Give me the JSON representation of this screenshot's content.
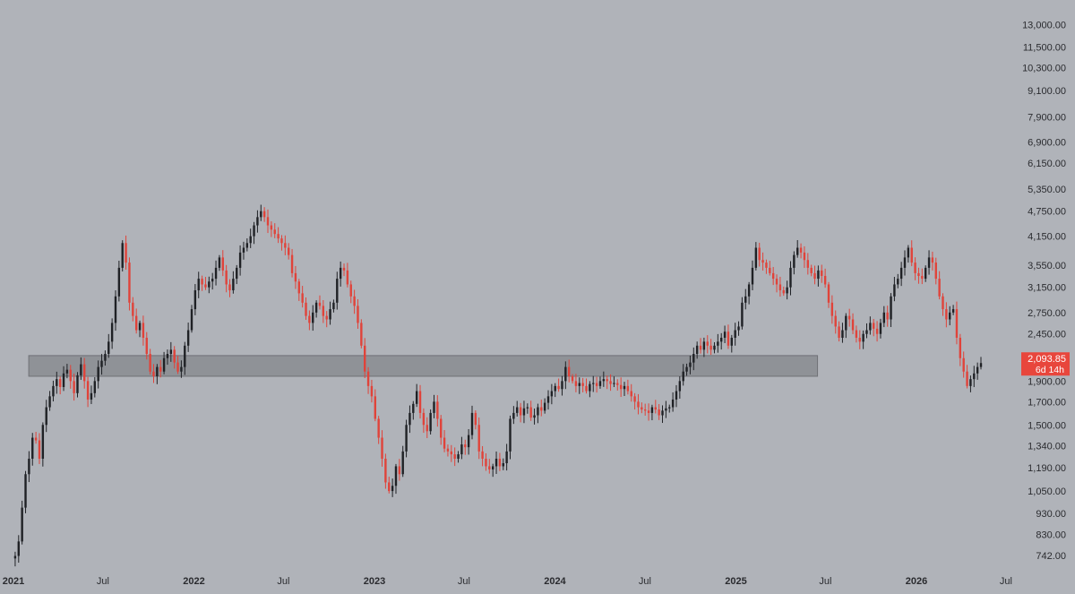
{
  "colors": {
    "background": "#b0b3b9",
    "up_candle": "#1f2125",
    "down_candle": "#e0433a",
    "zone_fill": "#8a8c91",
    "zone_edge": "#6f7176",
    "axis_text": "#2a2b2f",
    "price_tag_bg": "#e8463c",
    "price_tag_text": "#ffffff"
  },
  "chart_data": {
    "type": "candlestick",
    "y_scale": "log",
    "ylim": [
      700,
      14000
    ],
    "y_ticks": [
      13000,
      11500,
      10300,
      9100,
      7900,
      6900,
      6150,
      5350,
      4750,
      4150,
      3550,
      3150,
      2750,
      2450,
      2150,
      1900,
      1700,
      1500,
      1340,
      1190,
      1050,
      930,
      830,
      742
    ],
    "y_tick_labels": [
      "13,000.00",
      "11,500.00",
      "10,300.00",
      "9,100.00",
      "7,900.00",
      "6,900.00",
      "6,150.00",
      "5,350.00",
      "4,750.00",
      "4,150.00",
      "3,550.00",
      "3,150.00",
      "2,750.00",
      "2,450.00",
      "2,150.00",
      "1,900.00",
      "1,700.00",
      "1,500.00",
      "1,340.00",
      "1,190.00",
      "1,050.00",
      "930.00",
      "830.00",
      "742.00"
    ],
    "x_start": "2021-01-01",
    "x_end": "2026-08-01",
    "x_ticks": [
      {
        "date": "2021-01-01",
        "label": "2021",
        "bold": true
      },
      {
        "date": "2021-07-01",
        "label": "Jul",
        "bold": false
      },
      {
        "date": "2022-01-01",
        "label": "2022",
        "bold": true
      },
      {
        "date": "2022-07-01",
        "label": "Jul",
        "bold": false
      },
      {
        "date": "2023-01-01",
        "label": "2023",
        "bold": true
      },
      {
        "date": "2023-07-01",
        "label": "Jul",
        "bold": false
      },
      {
        "date": "2024-01-01",
        "label": "2024",
        "bold": true
      },
      {
        "date": "2024-07-01",
        "label": "Jul",
        "bold": false
      },
      {
        "date": "2025-01-01",
        "label": "2025",
        "bold": true
      },
      {
        "date": "2025-07-01",
        "label": "Jul",
        "bold": false
      },
      {
        "date": "2026-01-01",
        "label": "2026",
        "bold": true
      },
      {
        "date": "2026-07-01",
        "label": "Jul",
        "bold": false
      }
    ],
    "zone": {
      "low": 1950,
      "high": 2180,
      "start": "2021-02-01",
      "end": "2025-06-15"
    },
    "last_price": "2,093.85",
    "countdown": "6d 14h",
    "last_price_value": 2093.85,
    "path_start": "2021-01-01",
    "path_step_days": 7,
    "path_start_price": 730,
    "close_path": [
      740,
      800,
      960,
      1150,
      1250,
      1400,
      1380,
      1250,
      1500,
      1650,
      1750,
      1850,
      1920,
      1840,
      1980,
      2020,
      1900,
      1780,
      1960,
      2080,
      1900,
      1720,
      1780,
      1900,
      2050,
      2120,
      2200,
      2350,
      2600,
      3000,
      3500,
      4000,
      3600,
      2900,
      2700,
      2500,
      2600,
      2400,
      2200,
      2000,
      1950,
      2050,
      2000,
      2150,
      2200,
      2250,
      2100,
      2000,
      2050,
      2300,
      2500,
      2800,
      3100,
      3300,
      3200,
      3150,
      3250,
      3300,
      3500,
      3700,
      3450,
      3200,
      3100,
      3300,
      3500,
      3800,
      3900,
      4000,
      4150,
      4400,
      4600,
      4750,
      4600,
      4400,
      4300,
      4200,
      4100,
      4000,
      3900,
      3750,
      3400,
      3250,
      3050,
      2900,
      2700,
      2600,
      2750,
      2900,
      2850,
      2700,
      2650,
      2800,
      2900,
      3300,
      3500,
      3450,
      3200,
      3000,
      2850,
      2600,
      2300,
      2000,
      1850,
      1750,
      1550,
      1400,
      1250,
      1100,
      1050,
      1080,
      1200,
      1150,
      1300,
      1500,
      1600,
      1680,
      1800,
      1600,
      1500,
      1450,
      1600,
      1700,
      1550,
      1400,
      1320,
      1300,
      1280,
      1250,
      1280,
      1350,
      1330,
      1420,
      1600,
      1500,
      1300,
      1250,
      1200,
      1180,
      1200,
      1250,
      1200,
      1220,
      1300,
      1550,
      1600,
      1650,
      1580,
      1640,
      1650,
      1560,
      1580,
      1650,
      1620,
      1690,
      1750,
      1800,
      1850,
      1820,
      1900,
      2050,
      1950,
      1900,
      1850,
      1880,
      1850,
      1800,
      1870,
      1880,
      1850,
      1900,
      1920,
      1900,
      1870,
      1880,
      1860,
      1820,
      1850,
      1800,
      1750,
      1700,
      1650,
      1630,
      1620,
      1600,
      1650,
      1630,
      1580,
      1620,
      1640,
      1650,
      1720,
      1800,
      1900,
      2000,
      2050,
      2100,
      2200,
      2300,
      2250,
      2350,
      2300,
      2250,
      2300,
      2350,
      2400,
      2480,
      2300,
      2400,
      2500,
      2550,
      2900,
      3000,
      3200,
      3500,
      3900,
      3650,
      3600,
      3500,
      3400,
      3300,
      3200,
      3100,
      3050,
      3150,
      3500,
      3750,
      3900,
      3800,
      3650,
      3500,
      3400,
      3300,
      3450,
      3350,
      3200,
      2900,
      2700,
      2550,
      2400,
      2500,
      2700,
      2650,
      2500,
      2400,
      2350,
      2450,
      2500,
      2600,
      2520,
      2450,
      2600,
      2750,
      2650,
      3000,
      3200,
      3300,
      3500,
      3700,
      3900,
      3600,
      3400,
      3350,
      3300,
      3500,
      3700,
      3600,
      3300,
      3000,
      2800,
      2650,
      2750,
      2800,
      2400,
      2150,
      2000,
      1850,
      1920,
      1980,
      2050,
      2093.85
    ]
  }
}
